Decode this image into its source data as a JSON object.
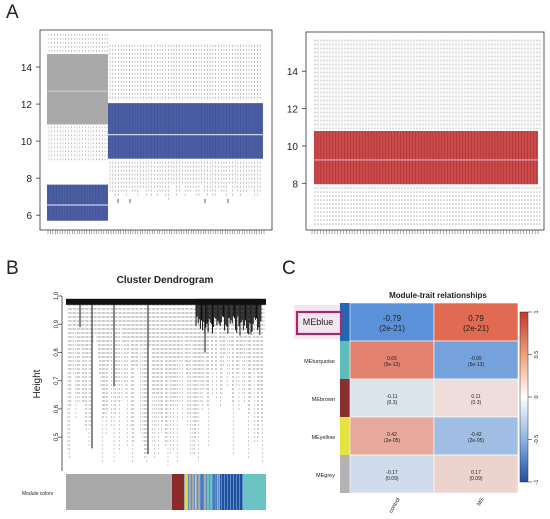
{
  "panels": {
    "A": "A",
    "B": "B",
    "C": "C"
  },
  "chart_data": [
    {
      "panel": "A-left",
      "type": "boxplot",
      "title": "",
      "xlabel": "",
      "ylabel": "",
      "ylim": [
        5.2,
        16.0
      ],
      "yticks": [
        6,
        8,
        10,
        12,
        14
      ],
      "groups": [
        {
          "color": "#a9a9a9",
          "n_samples": 20,
          "median": 12.7,
          "q1": 10.9,
          "q3": 14.7,
          "whisker_low": 10.9,
          "whisker_high": 14.7
        },
        {
          "color": "#4b5ea4",
          "n_samples": 20,
          "median": 6.55,
          "q1": 5.7,
          "q3": 7.65,
          "whisker_low": 5.4,
          "whisker_high": 8.9
        },
        {
          "color": "#4b5ea4",
          "n_samples": 50,
          "median": 10.35,
          "q1": 9.05,
          "q3": 12.05,
          "whisker_low": 6.9,
          "whisker_high": 15.2
        }
      ],
      "colors": {
        "gray": "#a9a9a9",
        "blue": "#4b5ea4",
        "median": "#cdd3e6"
      }
    },
    {
      "panel": "A-right",
      "type": "boxplot",
      "title": "",
      "xlabel": "",
      "ylabel": "",
      "ylim": [
        5.5,
        16.1
      ],
      "yticks": [
        8,
        10,
        12,
        14
      ],
      "groups": [
        {
          "color": "#cc4a4a",
          "n_samples": 90,
          "median": 9.25,
          "q1": 7.95,
          "q3": 10.8,
          "whisker_low": 5.7,
          "whisker_high": 15.8
        }
      ],
      "colors": {
        "red": "#cc4a4a",
        "median": "#e5a5b5"
      }
    },
    {
      "panel": "B",
      "type": "dendrogram",
      "title": "Cluster Dendrogram",
      "ylabel": "Height",
      "ylim": [
        0.38,
        1.0
      ],
      "yticks": [
        0.5,
        0.6,
        0.7,
        0.8,
        0.9,
        1.0
      ],
      "colorbar_label": "Module colors",
      "module_colors": [
        "#a9a9a9",
        "#8b2a2a",
        "#dcdc40",
        "#4a7bbd",
        "#6cc3c3",
        "#1f4f9c"
      ]
    },
    {
      "panel": "C",
      "type": "heatmap",
      "title": "Module-trait relationships",
      "columns": [
        "control",
        "MS"
      ],
      "rows": [
        {
          "module": "MEblue",
          "color": "#2466b0",
          "cells": [
            {
              "r": "-0.79",
              "p": "(2e-21)",
              "value": -0.79
            },
            {
              "r": "0.79",
              "p": "(2e-21)",
              "value": 0.79
            }
          ]
        },
        {
          "module": "MEturquoise",
          "color": "#5dbdbd",
          "cells": [
            {
              "r": "0.65",
              "p": "(5e-13)",
              "value": 0.65
            },
            {
              "r": "-0.65",
              "p": "(5e-13)",
              "value": -0.65
            }
          ]
        },
        {
          "module": "MEbrown",
          "color": "#8b2e2e",
          "cells": [
            {
              "r": "-0.11",
              "p": "(0.3)",
              "value": -0.11
            },
            {
              "r": "0.11",
              "p": "(0.3)",
              "value": 0.11
            }
          ]
        },
        {
          "module": "MEyellow",
          "color": "#e3e341",
          "cells": [
            {
              "r": "0.42",
              "p": "(2e-05)",
              "value": 0.42
            },
            {
              "r": "-0.42",
              "p": "(2e-05)",
              "value": -0.42
            }
          ]
        },
        {
          "module": "MEgrey",
          "color": "#b3b3b3",
          "cells": [
            {
              "r": "-0.17",
              "p": "(0.09)",
              "value": -0.17
            },
            {
              "r": "0.17",
              "p": "(0.09)",
              "value": 0.17
            }
          ]
        }
      ],
      "colorbar": {
        "min": -1,
        "max": 1,
        "ticks": [
          {
            "v": 1,
            "label": "1"
          },
          {
            "v": 0.5,
            "label": "0.5"
          },
          {
            "v": 0,
            "label": "0"
          },
          {
            "v": -0.5,
            "label": "-0.5"
          },
          {
            "v": -1,
            "label": "-1"
          }
        ]
      },
      "highlighted_module": "MEblue",
      "highlight_color": "#9c2f74"
    }
  ]
}
